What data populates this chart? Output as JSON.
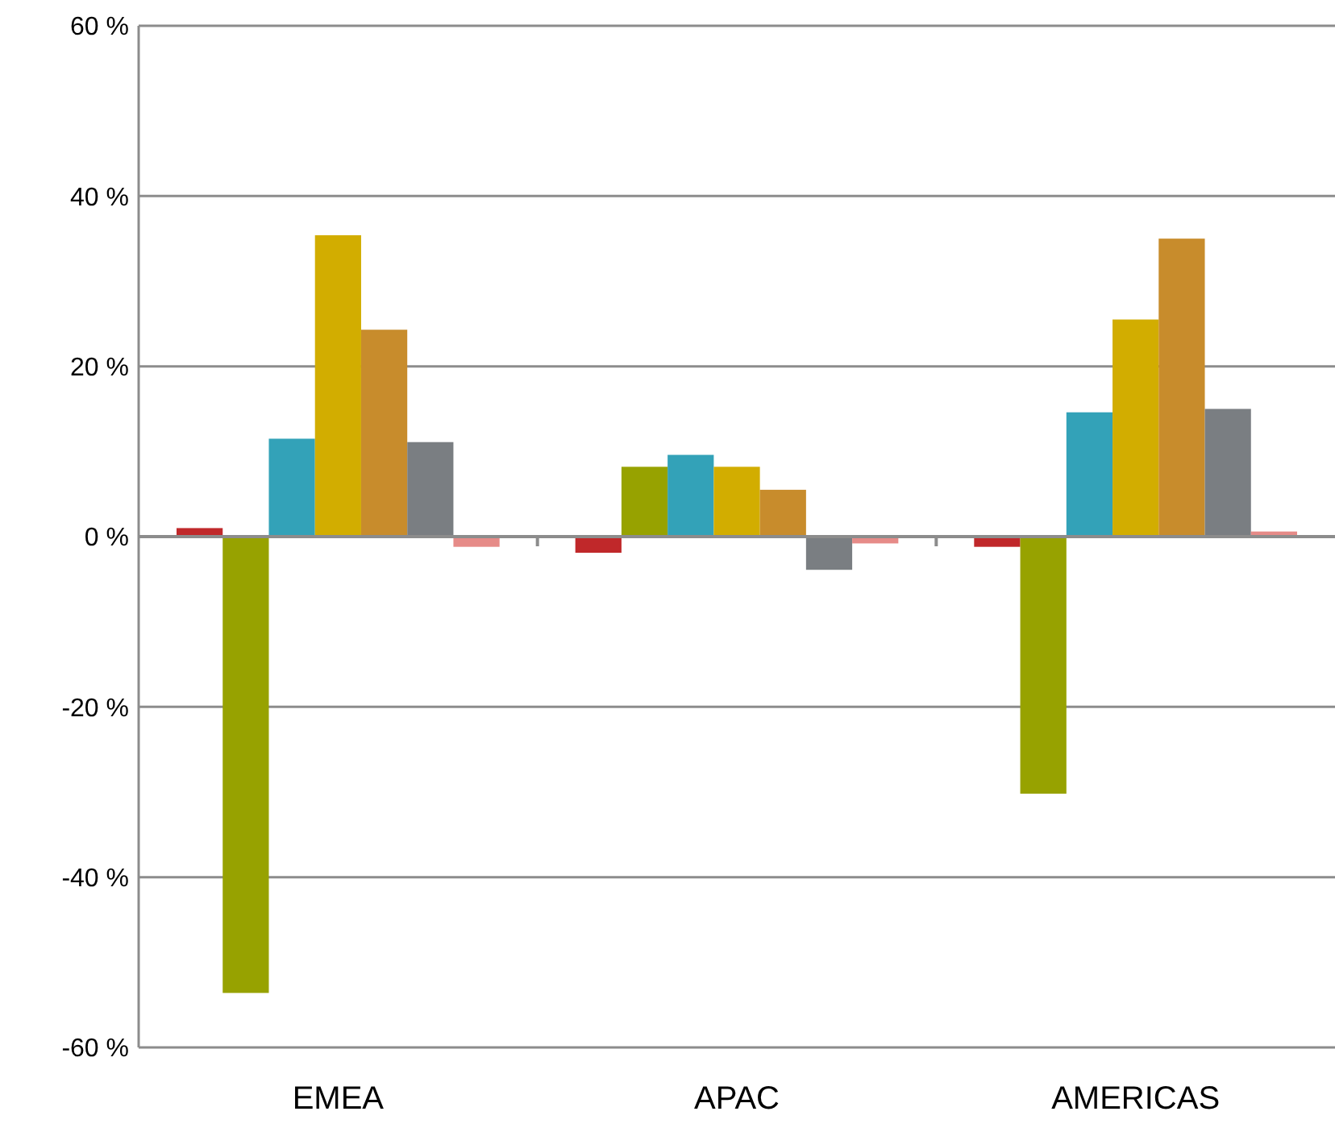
{
  "chart_data": {
    "type": "bar",
    "categories": [
      "EMEA",
      "APAC",
      "AMERICAS"
    ],
    "series": [
      {
        "color": "#c0282a",
        "values": [
          1.0,
          -1.9,
          -1.2
        ]
      },
      {
        "color": "#97a200",
        "values": [
          -53.6,
          8.2,
          -30.2
        ]
      },
      {
        "color": "#33a2b8",
        "values": [
          11.5,
          9.6,
          14.6
        ]
      },
      {
        "color": "#d2ad00",
        "values": [
          35.4,
          8.2,
          25.5
        ]
      },
      {
        "color": "#c88c2c",
        "values": [
          24.3,
          5.5,
          35.0
        ]
      },
      {
        "color": "#7a7e82",
        "values": [
          11.1,
          -3.9,
          15.0
        ]
      },
      {
        "color": "#e68b88",
        "values": [
          -1.2,
          -0.8,
          0.6
        ]
      }
    ],
    "ylim": [
      -60,
      60
    ],
    "yticks": [
      {
        "value": -60,
        "label": "-60 %"
      },
      {
        "value": -40,
        "label": "-40 %"
      },
      {
        "value": -20,
        "label": "-20 %"
      },
      {
        "value": 0,
        "label": "0 %"
      },
      {
        "value": 20,
        "label": "20 %"
      },
      {
        "value": 40,
        "label": "40 %"
      },
      {
        "value": 60,
        "label": "60 %"
      }
    ],
    "grid": "y"
  }
}
